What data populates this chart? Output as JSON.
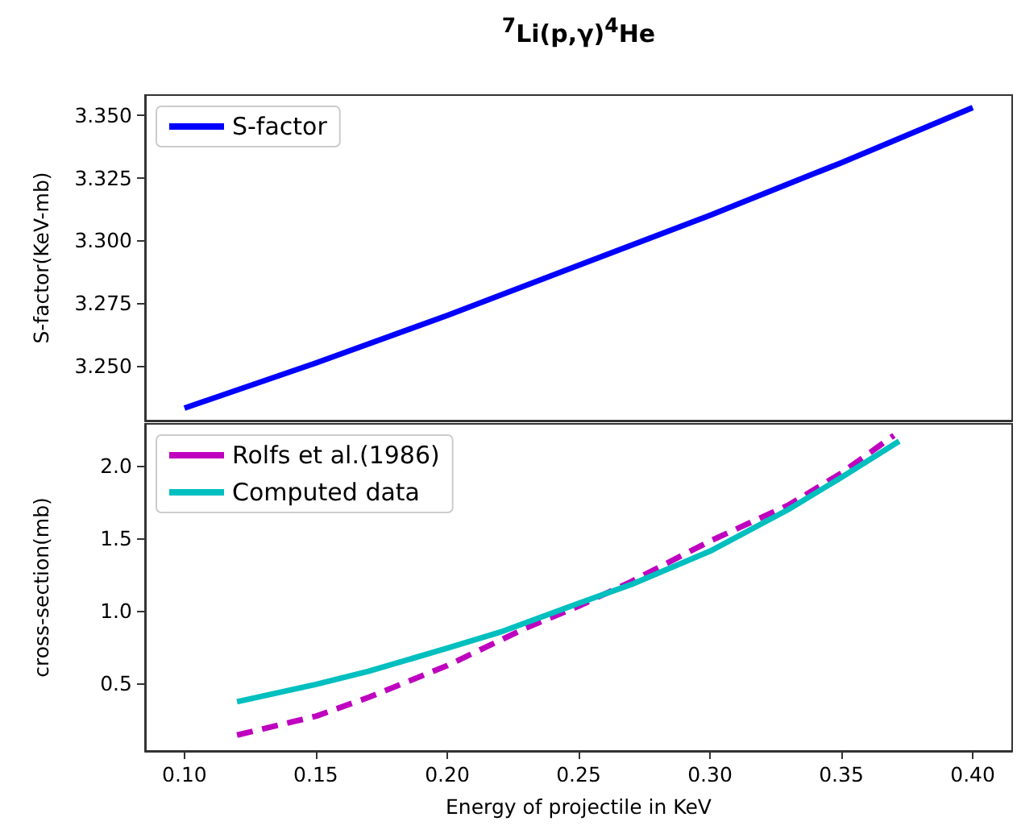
{
  "chart_data": [
    {
      "type": "line",
      "title": "$^{7}$Li(p,γ)$^{4}$He",
      "ylabel": "S-factor(KeV-mb)",
      "x": [
        0.1,
        0.15,
        0.2,
        0.25,
        0.3,
        0.35,
        0.4
      ],
      "series": [
        {
          "name": "S-factor",
          "color": "#0000ff",
          "line_style": "solid",
          "values": [
            3.233,
            3.251,
            3.27,
            3.29,
            3.31,
            3.331,
            3.353
          ]
        }
      ],
      "xlim": [
        0.085,
        0.415
      ],
      "xticks": [
        {
          "value": 0.1,
          "label": null
        },
        {
          "value": 0.15,
          "label": null
        },
        {
          "value": 0.2,
          "label": null
        },
        {
          "value": 0.25,
          "label": null
        },
        {
          "value": 0.3,
          "label": null
        },
        {
          "value": 0.35,
          "label": null
        },
        {
          "value": 0.4,
          "label": null
        }
      ],
      "ylim": [
        3.228,
        3.358
      ],
      "yticks": [
        {
          "value": 3.25,
          "label": "3.250"
        },
        {
          "value": 3.275,
          "label": "3.275"
        },
        {
          "value": 3.3,
          "label": "3.300"
        },
        {
          "value": 3.325,
          "label": "3.325"
        },
        {
          "value": 3.35,
          "label": "3.350"
        }
      ],
      "tick_labels": "y",
      "grid": false,
      "legend": "top left"
    },
    {
      "type": "line",
      "xlabel": "Energy of projectile in KeV",
      "ylabel": "cross-section(mb)",
      "series": [
        {
          "name": "Rolfs et al.(1986)",
          "color": "#bf00bf",
          "line_style": "dashed",
          "x": [
            0.12,
            0.15,
            0.17,
            0.2,
            0.23,
            0.25,
            0.27,
            0.3,
            0.33,
            0.35,
            0.37
          ],
          "values": [
            0.14,
            0.27,
            0.4,
            0.62,
            0.88,
            1.03,
            1.2,
            1.48,
            1.73,
            1.95,
            2.21
          ]
        },
        {
          "name": "Computed data",
          "color": "#00bfbf",
          "line_style": "solid",
          "x": [
            0.12,
            0.15,
            0.17,
            0.2,
            0.22,
            0.25,
            0.27,
            0.3,
            0.33,
            0.35,
            0.372
          ],
          "values": [
            0.37,
            0.49,
            0.58,
            0.74,
            0.85,
            1.05,
            1.18,
            1.41,
            1.7,
            1.92,
            2.17
          ]
        }
      ],
      "xlim": [
        0.085,
        0.415
      ],
      "xticks": [
        {
          "value": 0.1,
          "label": "0.10"
        },
        {
          "value": 0.15,
          "label": "0.15"
        },
        {
          "value": 0.2,
          "label": "0.20"
        },
        {
          "value": 0.25,
          "label": "0.25"
        },
        {
          "value": 0.3,
          "label": "0.30"
        },
        {
          "value": 0.35,
          "label": "0.35"
        },
        {
          "value": 0.4,
          "label": "0.40"
        }
      ],
      "ylim": [
        0.03,
        2.29
      ],
      "yticks": [
        {
          "value": 0.5,
          "label": "0.5"
        },
        {
          "value": 1,
          "label": "1.0"
        },
        {
          "value": 1.5,
          "label": "1.5"
        },
        {
          "value": 2,
          "label": "2.0"
        }
      ],
      "grid": false,
      "legend": "top left"
    }
  ]
}
